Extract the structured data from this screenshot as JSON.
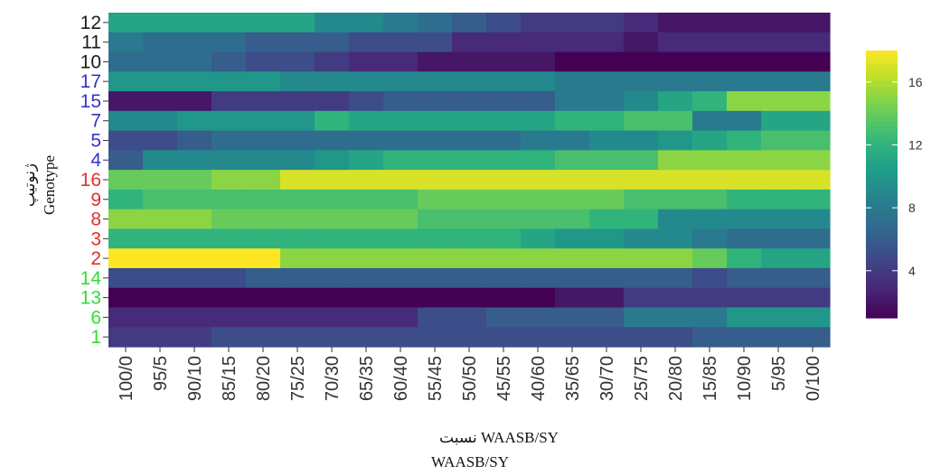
{
  "chart_data": {
    "type": "heatmap",
    "xlabel": "WAASB/SY",
    "xlabel_line1": "WAASB/SY نسبت",
    "ylabel": "Genotype",
    "ylabel_fa": "ژنوتیپ",
    "x": [
      "100/0",
      "95/5",
      "90/10",
      "85/15",
      "80/20",
      "75/25",
      "70/30",
      "65/35",
      "60/40",
      "55/45",
      "50/50",
      "45/55",
      "40/60",
      "35/65",
      "30/70",
      "25/75",
      "20/80",
      "15/85",
      "10/90",
      "5/95",
      "0/100"
    ],
    "y": [
      "12",
      "11",
      "10",
      "17",
      "15",
      "7",
      "5",
      "4",
      "16",
      "9",
      "8",
      "3",
      "2",
      "14",
      "13",
      "6",
      "1"
    ],
    "y_colors": [
      "#1a1a1a",
      "#1a1a1a",
      "#1a1a1a",
      "#3333cc",
      "#3333cc",
      "#3333cc",
      "#3333cc",
      "#3333cc",
      "#e03030",
      "#e03030",
      "#e03030",
      "#e03030",
      "#e03030",
      "#33dd33",
      "#33dd33",
      "#33dd33",
      "#33dd33"
    ],
    "values": [
      [
        11,
        11,
        11,
        11,
        11,
        11,
        9,
        9,
        8,
        7,
        6,
        5,
        4,
        4,
        4,
        3,
        2,
        2,
        2,
        2,
        2
      ],
      [
        8,
        7,
        7,
        7,
        6,
        6,
        6,
        5,
        5,
        5,
        3,
        3,
        3,
        3,
        3,
        2,
        3,
        3,
        3,
        3,
        3
      ],
      [
        7,
        7,
        7,
        6,
        5,
        5,
        4,
        3,
        3,
        2,
        2,
        2,
        2,
        1,
        1,
        1,
        1,
        1,
        1,
        1,
        1
      ],
      [
        10,
        10,
        10,
        10,
        10,
        9,
        9,
        9,
        9,
        9,
        9,
        9,
        9,
        8,
        8,
        8,
        8,
        8,
        8,
        8,
        8
      ],
      [
        2,
        2,
        2,
        4,
        4,
        4,
        4,
        5,
        6,
        6,
        6,
        6,
        6,
        8,
        8,
        9,
        11,
        12,
        15,
        15,
        15
      ],
      [
        9,
        9,
        10,
        10,
        10,
        10,
        12,
        11,
        11,
        11,
        11,
        11,
        11,
        12,
        12,
        13,
        13,
        8,
        8,
        11,
        11
      ],
      [
        5,
        5,
        6,
        7,
        7,
        7,
        7,
        7,
        7,
        7,
        7,
        7,
        8,
        8,
        9,
        9,
        10,
        11,
        12,
        13,
        13
      ],
      [
        6,
        9,
        9,
        9,
        9,
        9,
        10,
        11,
        12,
        12,
        12,
        12,
        12,
        13,
        13,
        13,
        15,
        15,
        15,
        15,
        15
      ],
      [
        14,
        14,
        14,
        15,
        15,
        17,
        17,
        17,
        17,
        17,
        17,
        17,
        17,
        17,
        17,
        17,
        17,
        17,
        17,
        17,
        17
      ],
      [
        12,
        13,
        13,
        13,
        13,
        13,
        13,
        13,
        13,
        14,
        14,
        14,
        14,
        14,
        14,
        13,
        13,
        13,
        12,
        12,
        12
      ],
      [
        15,
        15,
        15,
        14,
        14,
        14,
        14,
        14,
        14,
        13,
        13,
        13,
        13,
        13,
        12,
        12,
        9,
        9,
        9,
        9,
        9
      ],
      [
        12,
        12,
        12,
        12,
        12,
        12,
        12,
        12,
        12,
        12,
        12,
        12,
        11,
        10,
        10,
        9,
        9,
        8,
        7,
        7,
        7
      ],
      [
        18,
        18,
        18,
        18,
        18,
        15,
        15,
        15,
        15,
        15,
        15,
        15,
        15,
        15,
        15,
        15,
        15,
        14,
        12,
        11,
        11
      ],
      [
        5,
        5,
        5,
        5,
        6,
        6,
        6,
        6,
        6,
        6,
        6,
        6,
        6,
        6,
        6,
        6,
        6,
        5,
        6,
        6,
        6
      ],
      [
        1,
        1,
        1,
        1,
        1,
        1,
        1,
        1,
        1,
        1,
        1,
        1,
        1,
        2,
        2,
        4,
        4,
        4,
        4,
        4,
        4
      ],
      [
        3,
        3,
        3,
        3,
        3,
        3,
        3,
        3,
        3,
        5,
        5,
        6,
        6,
        6,
        6,
        8,
        8,
        8,
        10,
        10,
        10
      ],
      [
        4,
        4,
        4,
        5,
        5,
        5,
        5,
        5,
        5,
        5,
        5,
        5,
        5,
        5,
        5,
        5,
        5,
        6,
        6,
        6,
        6
      ]
    ],
    "zlim": [
      1,
      18
    ],
    "colorbar_ticks": [
      4,
      8,
      12,
      16
    ],
    "colormap": "viridis"
  }
}
